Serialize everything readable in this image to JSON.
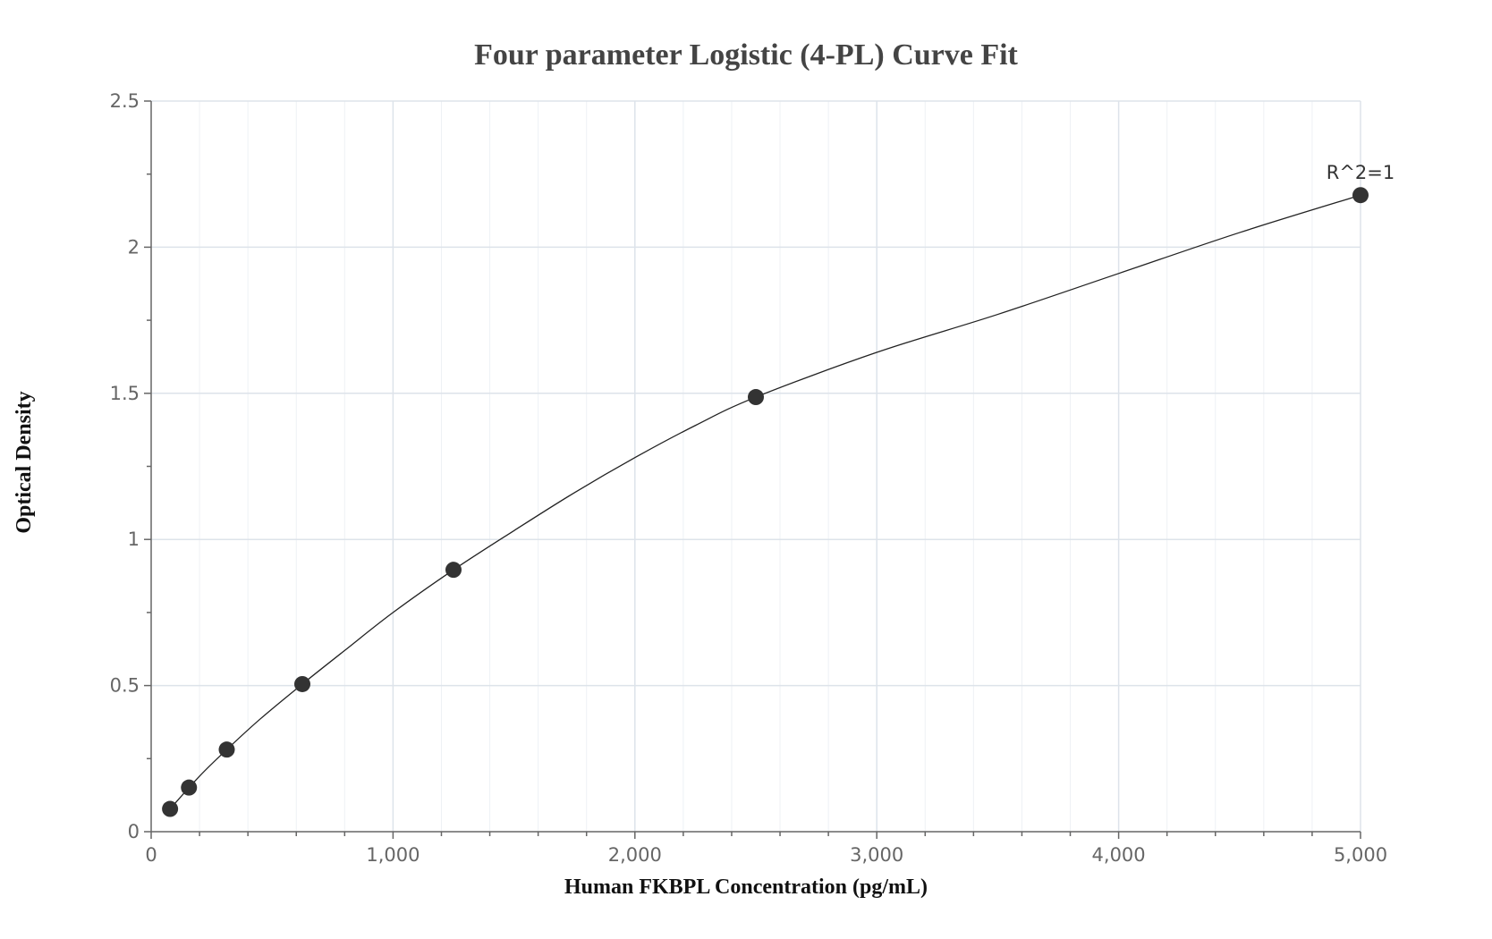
{
  "chart_data": {
    "type": "scatter",
    "title": "Four parameter Logistic (4-PL) Curve Fit",
    "xlabel": "Human FKBPL Concentration (pg/mL)",
    "ylabel": "Optical Density",
    "xlim": [
      0,
      5000
    ],
    "ylim": [
      0,
      2.5
    ],
    "x_ticks": [
      0,
      1000,
      2000,
      3000,
      4000,
      5000
    ],
    "x_tick_labels": [
      "0",
      "1,000",
      "2,000",
      "3,000",
      "4,000",
      "5,000"
    ],
    "y_ticks": [
      0,
      0.5,
      1,
      1.5,
      2,
      2.5
    ],
    "y_tick_labels": [
      "0",
      "0.5",
      "1",
      "1.5",
      "2",
      "2.5"
    ],
    "grid": true,
    "series": [
      {
        "x": [
          78.125,
          156.25,
          312.5,
          625,
          1250,
          2500,
          5000
        ],
        "y": [
          0.078,
          0.151,
          0.281,
          0.505,
          0.896,
          1.487,
          2.178
        ]
      }
    ],
    "fit_curve": {
      "model": "4PL",
      "points": [
        [
          78.125,
          0.078
        ],
        [
          200,
          0.19
        ],
        [
          312.5,
          0.281
        ],
        [
          450,
          0.385
        ],
        [
          625,
          0.505
        ],
        [
          800,
          0.62
        ],
        [
          1000,
          0.75
        ],
        [
          1250,
          0.896
        ],
        [
          1500,
          1.03
        ],
        [
          1750,
          1.16
        ],
        [
          2000,
          1.28
        ],
        [
          2250,
          1.39
        ],
        [
          2500,
          1.487
        ],
        [
          3000,
          1.64
        ],
        [
          3500,
          1.77
        ],
        [
          4000,
          1.91
        ],
        [
          4500,
          2.05
        ],
        [
          5000,
          2.178
        ]
      ]
    },
    "annotations": [
      {
        "text": "R^2=1",
        "x": 5000,
        "y": 2.178
      }
    ],
    "colors": {
      "points": "#333333",
      "curve": "#222222",
      "grid_major": "#dde3ea",
      "grid_minor": "#eef1f5",
      "axis": "#666666"
    }
  }
}
